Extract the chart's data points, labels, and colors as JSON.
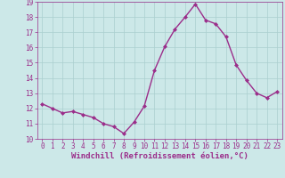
{
  "x": [
    0,
    1,
    2,
    3,
    4,
    5,
    6,
    7,
    8,
    9,
    10,
    11,
    12,
    13,
    14,
    15,
    16,
    17,
    18,
    19,
    20,
    21,
    22,
    23
  ],
  "y": [
    12.3,
    12.0,
    11.7,
    11.8,
    11.6,
    11.4,
    11.0,
    10.8,
    10.35,
    11.1,
    12.15,
    14.5,
    16.05,
    17.2,
    18.0,
    18.85,
    17.8,
    17.55,
    16.7,
    14.85,
    13.85,
    13.0,
    12.7,
    13.1
  ],
  "line_color": "#9b2d8a",
  "marker": "D",
  "marker_size": 2.0,
  "bg_color": "#cce8e8",
  "grid_color": "#aacfcf",
  "xlabel": "Windchill (Refroidissement éolien,°C)",
  "ylim": [
    10,
    19
  ],
  "xlim": [
    -0.5,
    23.5
  ],
  "xticks": [
    0,
    1,
    2,
    3,
    4,
    5,
    6,
    7,
    8,
    9,
    10,
    11,
    12,
    13,
    14,
    15,
    16,
    17,
    18,
    19,
    20,
    21,
    22,
    23
  ],
  "yticks": [
    10,
    11,
    12,
    13,
    14,
    15,
    16,
    17,
    18,
    19
  ],
  "tick_fontsize": 5.5,
  "xlabel_fontsize": 6.5,
  "line_width": 1.0
}
